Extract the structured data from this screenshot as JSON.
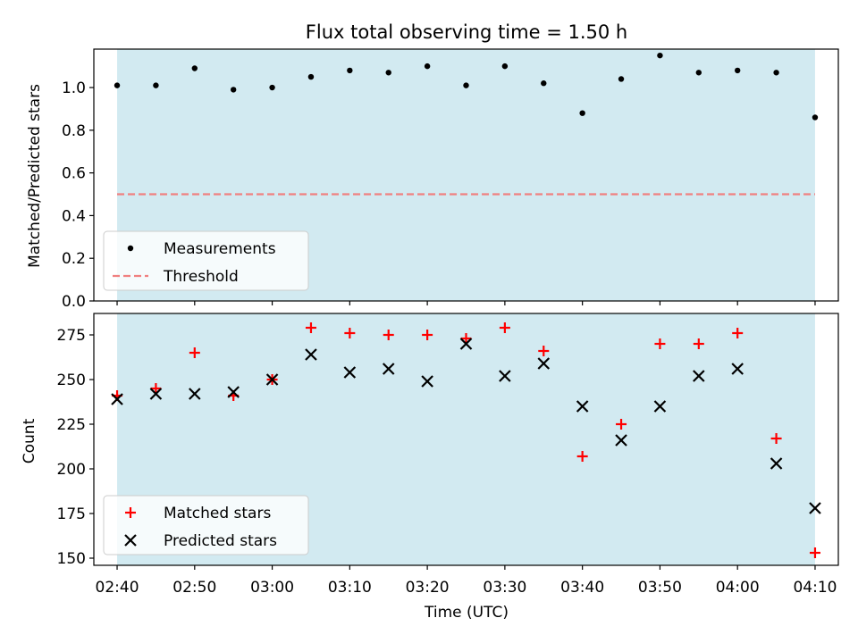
{
  "chart_data": [
    {
      "type": "scatter",
      "title": "Flux total observing time = 1.50 h",
      "xlabel": "",
      "ylabel": "Matched/Predicted stars",
      "xlim": [
        "02:37",
        "04:13"
      ],
      "ylim": [
        0,
        1.18
      ],
      "y_ticks": [
        "0.0",
        "0.2",
        "0.4",
        "0.6",
        "0.8",
        "1.0"
      ],
      "shaded_range": [
        "02:40",
        "04:10"
      ],
      "shade_color": "#add8e6",
      "legend_position": "lower-left",
      "series": [
        {
          "name": "Measurements",
          "marker": "dot",
          "color": "#000000",
          "points": [
            {
              "x": "02:40",
              "y": 1.01
            },
            {
              "x": "02:45",
              "y": 1.01
            },
            {
              "x": "02:50",
              "y": 1.09
            },
            {
              "x": "02:55",
              "y": 0.99
            },
            {
              "x": "03:00",
              "y": 1.0
            },
            {
              "x": "03:05",
              "y": 1.05
            },
            {
              "x": "03:10",
              "y": 1.08
            },
            {
              "x": "03:15",
              "y": 1.07
            },
            {
              "x": "03:20",
              "y": 1.1
            },
            {
              "x": "03:25",
              "y": 1.01
            },
            {
              "x": "03:30",
              "y": 1.1
            },
            {
              "x": "03:35",
              "y": 1.02
            },
            {
              "x": "03:40",
              "y": 0.88
            },
            {
              "x": "03:45",
              "y": 1.04
            },
            {
              "x": "03:50",
              "y": 1.15
            },
            {
              "x": "03:55",
              "y": 1.07
            },
            {
              "x": "04:00",
              "y": 1.08
            },
            {
              "x": "04:05",
              "y": 1.07
            },
            {
              "x": "04:10",
              "y": 0.86
            }
          ]
        },
        {
          "name": "Threshold",
          "marker": "dashed-line",
          "color": "#f08080",
          "y": 0.5
        }
      ]
    },
    {
      "type": "scatter",
      "title": "",
      "xlabel": "Time (UTC)",
      "ylabel": "Count",
      "xlim": [
        "02:37",
        "04:13"
      ],
      "ylim": [
        146,
        287
      ],
      "x_ticks": [
        "02:40",
        "02:50",
        "03:00",
        "03:10",
        "03:20",
        "03:30",
        "03:40",
        "03:50",
        "04:00",
        "04:10"
      ],
      "y_ticks": [
        "150",
        "175",
        "200",
        "225",
        "250",
        "275"
      ],
      "shaded_range": [
        "02:40",
        "04:10"
      ],
      "shade_color": "#add8e6",
      "legend_position": "lower-left",
      "series": [
        {
          "name": "Matched stars",
          "marker": "plus",
          "color": "#ff0000",
          "points": [
            {
              "x": "02:40",
              "y": 241
            },
            {
              "x": "02:45",
              "y": 245
            },
            {
              "x": "02:50",
              "y": 265
            },
            {
              "x": "02:55",
              "y": 241
            },
            {
              "x": "03:00",
              "y": 250
            },
            {
              "x": "03:05",
              "y": 279
            },
            {
              "x": "03:10",
              "y": 276
            },
            {
              "x": "03:15",
              "y": 275
            },
            {
              "x": "03:20",
              "y": 275
            },
            {
              "x": "03:25",
              "y": 273
            },
            {
              "x": "03:30",
              "y": 279
            },
            {
              "x": "03:35",
              "y": 266
            },
            {
              "x": "03:40",
              "y": 207
            },
            {
              "x": "03:45",
              "y": 225
            },
            {
              "x": "03:50",
              "y": 270
            },
            {
              "x": "03:55",
              "y": 270
            },
            {
              "x": "04:00",
              "y": 276
            },
            {
              "x": "04:05",
              "y": 217
            },
            {
              "x": "04:10",
              "y": 153
            }
          ]
        },
        {
          "name": "Predicted stars",
          "marker": "x",
          "color": "#000000",
          "points": [
            {
              "x": "02:40",
              "y": 239
            },
            {
              "x": "02:45",
              "y": 242
            },
            {
              "x": "02:50",
              "y": 242
            },
            {
              "x": "02:55",
              "y": 243
            },
            {
              "x": "03:00",
              "y": 250
            },
            {
              "x": "03:05",
              "y": 264
            },
            {
              "x": "03:10",
              "y": 254
            },
            {
              "x": "03:15",
              "y": 256
            },
            {
              "x": "03:20",
              "y": 249
            },
            {
              "x": "03:25",
              "y": 270
            },
            {
              "x": "03:30",
              "y": 252
            },
            {
              "x": "03:35",
              "y": 259
            },
            {
              "x": "03:40",
              "y": 235
            },
            {
              "x": "03:45",
              "y": 216
            },
            {
              "x": "03:50",
              "y": 235
            },
            {
              "x": "03:55",
              "y": 252
            },
            {
              "x": "04:00",
              "y": 256
            },
            {
              "x": "04:05",
              "y": 203
            },
            {
              "x": "04:10",
              "y": 178
            }
          ]
        }
      ]
    }
  ]
}
